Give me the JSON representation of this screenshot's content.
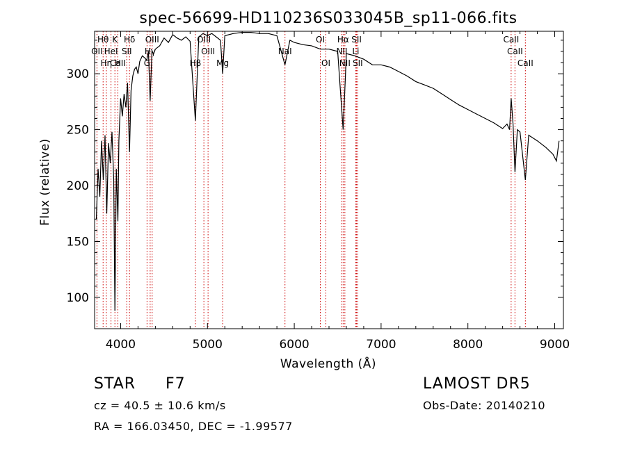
{
  "chart_data": {
    "type": "line",
    "title": "spec-56699-HD110236S033045B_sp11-066.fits",
    "xlabel": "Wavelength (Å)",
    "ylabel": "Flux (relative)",
    "xlim": [
      3700,
      9100
    ],
    "ylim": [
      72,
      338
    ],
    "xticks": [
      4000,
      5000,
      6000,
      7000,
      8000,
      9000
    ],
    "yticks": [
      100,
      150,
      200,
      250,
      300
    ],
    "grid": false,
    "line_color": "#000000",
    "marker_color": "#cc0000",
    "series": [
      {
        "x": [
          3720,
          3740,
          3760,
          3780,
          3800,
          3820,
          3840,
          3860,
          3880,
          3900,
          3920,
          3934,
          3950,
          3968,
          3980,
          4000,
          4020,
          4040,
          4060,
          4080,
          4102,
          4120,
          4140,
          4160,
          4180,
          4200,
          4220,
          4250,
          4280,
          4300,
          4320,
          4340,
          4360,
          4380,
          4400,
          4450,
          4500,
          4550,
          4600,
          4650,
          4700,
          4750,
          4800,
          4861,
          4900,
          4950,
          5000,
          5050,
          5100,
          5150,
          5175,
          5200,
          5300,
          5400,
          5500,
          5600,
          5700,
          5800,
          5893,
          5950,
          6000,
          6100,
          6200,
          6300,
          6400,
          6500,
          6563,
          6600,
          6700,
          6800,
          6900,
          7000,
          7100,
          7200,
          7300,
          7400,
          7500,
          7600,
          7700,
          7800,
          7900,
          8000,
          8100,
          8200,
          8300,
          8400,
          8450,
          8480,
          8498,
          8520,
          8542,
          8570,
          8600,
          8662,
          8700,
          8800,
          8900,
          8980,
          9020,
          9050
        ],
        "y": [
          170,
          215,
          190,
          240,
          205,
          245,
          175,
          238,
          220,
          248,
          205,
          88,
          215,
          168,
          240,
          278,
          262,
          282,
          270,
          292,
          230,
          285,
          298,
          304,
          306,
          300,
          311,
          316,
          314,
          312,
          320,
          276,
          320,
          318,
          322,
          325,
          332,
          328,
          335,
          332,
          330,
          333,
          329,
          258,
          333,
          336,
          334,
          336,
          333,
          330,
          300,
          334,
          336,
          337,
          337,
          336,
          336,
          334,
          308,
          330,
          328,
          326,
          325,
          322,
          322,
          320,
          250,
          318,
          316,
          313,
          308,
          308,
          306,
          302,
          298,
          293,
          290,
          287,
          282,
          277,
          272,
          268,
          264,
          260,
          256,
          251,
          255,
          250,
          278,
          255,
          212,
          250,
          248,
          205,
          245,
          240,
          234,
          228,
          222,
          240
        ]
      }
    ],
    "line_markers": [
      {
        "label": "Hθ",
        "wavelength": 3798,
        "row": 0
      },
      {
        "label": "K",
        "wavelength": 3934,
        "row": 0
      },
      {
        "label": "Hδ",
        "wavelength": 4102,
        "row": 0
      },
      {
        "label": "OIII",
        "wavelength": 4363,
        "row": 0
      },
      {
        "label": "OIII",
        "wavelength": 4959,
        "row": 0
      },
      {
        "label": "NaI",
        "wavelength": 5893,
        "row": 1
      },
      {
        "label": "OI",
        "wavelength": 6300,
        "row": 0
      },
      {
        "label": "Hα",
        "wavelength": 6563,
        "row": 0
      },
      {
        "label": "SII",
        "wavelength": 6717,
        "row": 0
      },
      {
        "label": "CaII",
        "wavelength": 8498,
        "row": 0
      },
      {
        "label": "OII",
        "wavelength": 3727,
        "row": 1
      },
      {
        "label": "HeI",
        "wavelength": 3889,
        "row": 1
      },
      {
        "label": "SII",
        "wavelength": 4070,
        "row": 1
      },
      {
        "label": "Hγ",
        "wavelength": 4340,
        "row": 1
      },
      {
        "label": "OIII",
        "wavelength": 5007,
        "row": 1
      },
      {
        "label": "OI",
        "wavelength": 6364,
        "row": 2
      },
      {
        "label": "NII",
        "wavelength": 6548,
        "row": 1
      },
      {
        "label": "Li",
        "wavelength": 6708,
        "row": 1
      },
      {
        "label": "CaII",
        "wavelength": 8542,
        "row": 1
      },
      {
        "label": "CaII",
        "wavelength": 3968,
        "row": 2
      },
      {
        "label": "Hη",
        "wavelength": 3835,
        "row": 2
      },
      {
        "label": "H",
        "wavelength": 3968,
        "row": 2
      },
      {
        "label": "G",
        "wavelength": 4304,
        "row": 2
      },
      {
        "label": "Hβ",
        "wavelength": 4861,
        "row": 2
      },
      {
        "label": "Mg",
        "wavelength": 5175,
        "row": 2
      },
      {
        "label": "NII",
        "wavelength": 6583,
        "row": 2
      },
      {
        "label": "SII",
        "wavelength": 6731,
        "row": 2
      },
      {
        "label": "CaII",
        "wavelength": 8662,
        "row": 2
      }
    ]
  },
  "info": {
    "object_type": "STAR",
    "spectral_class": "F7",
    "survey": "LAMOST DR5",
    "cz": "cz = 40.5 ± 10.6 km/s",
    "obs_date": "Obs-Date: 20140210",
    "coords": "RA = 166.03450, DEC =  -1.99577"
  }
}
